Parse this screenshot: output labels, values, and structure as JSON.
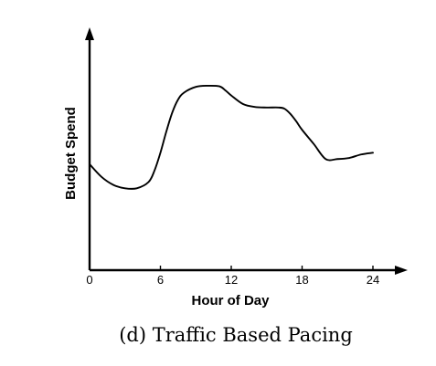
{
  "chart_data": {
    "type": "line",
    "title": "",
    "caption": "(d) Traffic Based Pacing",
    "xlabel": "Hour of Day",
    "ylabel": "Budget Spend",
    "xlim": [
      0,
      24
    ],
    "ylim": [
      0,
      4
    ],
    "x_ticks": [
      0,
      6,
      12,
      18,
      24
    ],
    "x_tick_labels": [
      "0",
      "6",
      "12",
      "18",
      "24"
    ],
    "y_ticks_shown": false,
    "grid": false,
    "legend": "none",
    "series": [
      {
        "color": "#000000",
        "x": [
          0,
          1,
          2,
          3,
          4,
          5,
          5.5,
          6,
          6.5,
          7,
          7.5,
          8,
          9,
          10,
          11,
          11.5,
          12,
          13,
          14,
          15,
          16,
          16.5,
          17,
          17.5,
          18,
          19,
          20,
          21,
          22,
          23,
          24
        ],
        "y": [
          1.85,
          1.63,
          1.49,
          1.43,
          1.43,
          1.54,
          1.74,
          2.05,
          2.42,
          2.75,
          2.98,
          3.1,
          3.2,
          3.22,
          3.21,
          3.14,
          3.05,
          2.9,
          2.85,
          2.84,
          2.84,
          2.82,
          2.73,
          2.6,
          2.45,
          2.2,
          1.94,
          1.94,
          1.96,
          2.02,
          2.05
        ]
      }
    ]
  }
}
